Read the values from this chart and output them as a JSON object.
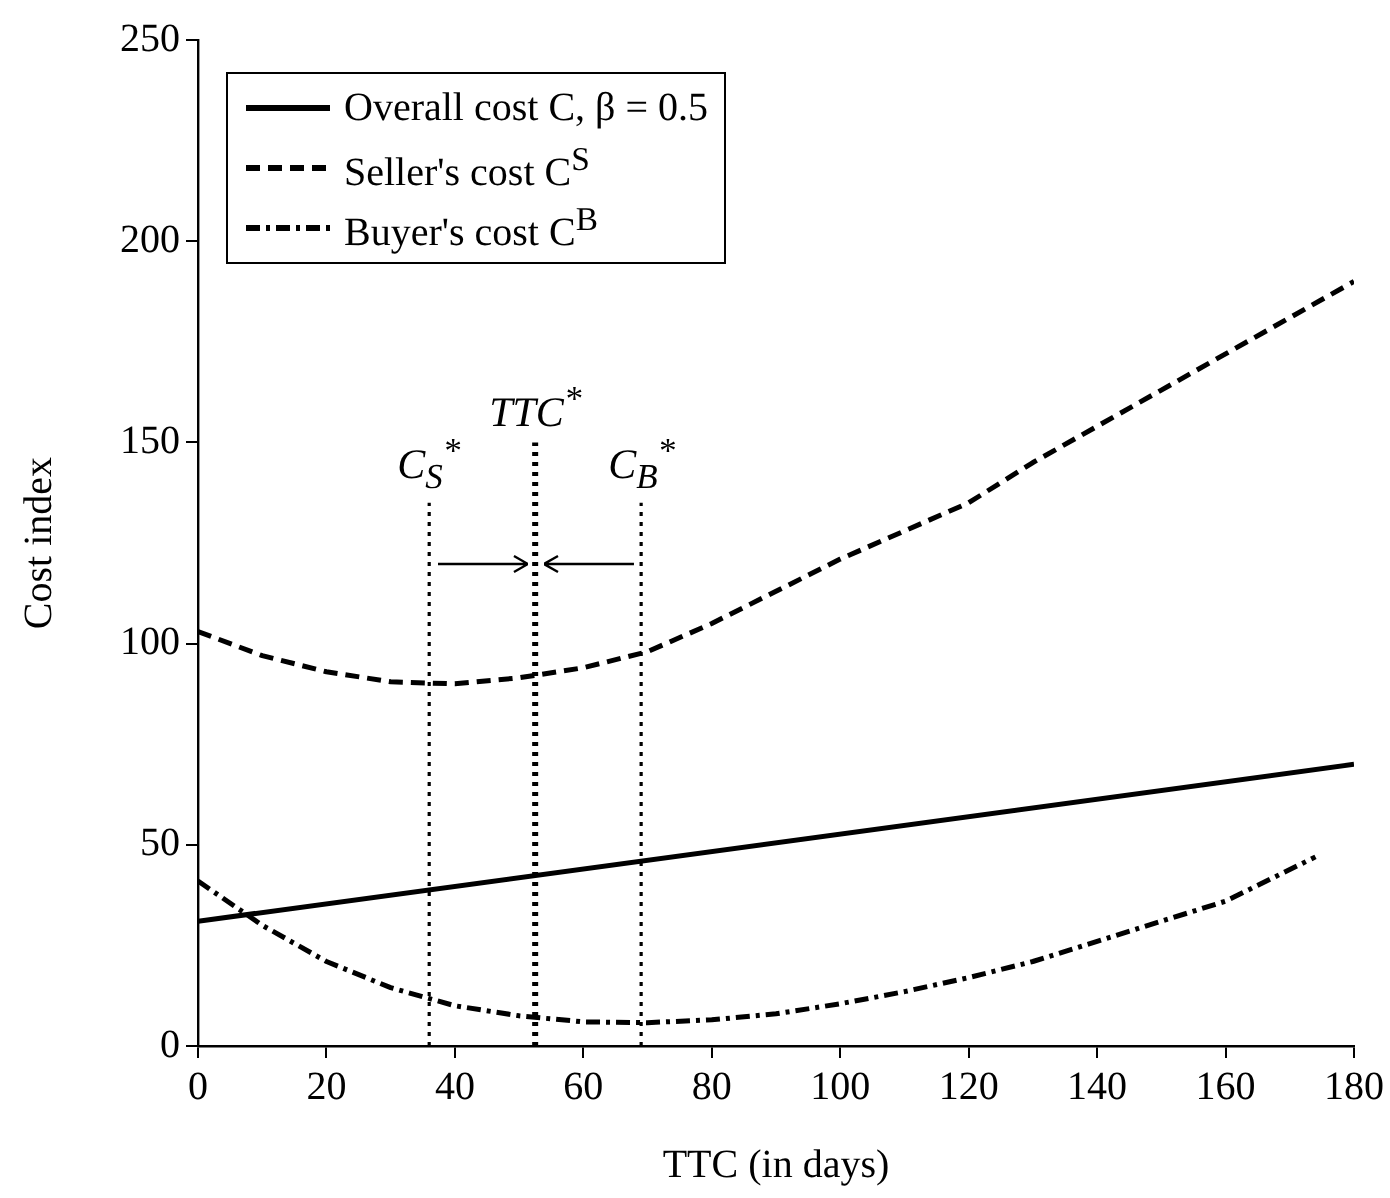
{
  "chart_data": {
    "type": "line",
    "xlabel": "TTC (in days)",
    "ylabel": "Cost index",
    "xlim": [
      0,
      180
    ],
    "xticks": [
      0,
      20,
      40,
      60,
      80,
      100,
      120,
      140,
      160,
      180
    ],
    "ylim": [
      0,
      250
    ],
    "yticks": [
      0,
      50,
      100,
      150,
      200,
      250
    ],
    "grid": false,
    "legend": "top left",
    "marker": "none",
    "series": [
      {
        "name": "Overall cost C, β = 0.5",
        "color": "#000000",
        "line_style": "solid",
        "x": [
          0,
          180
        ],
        "values": [
          31,
          70
        ]
      },
      {
        "name": "Seller's cost C$^{S}$",
        "color": "#000000",
        "line_style": "dashed",
        "x": [
          0,
          10,
          20,
          30,
          40,
          50,
          60,
          70,
          80,
          90,
          100,
          110,
          120,
          130,
          140,
          150,
          160,
          170,
          180
        ],
        "values": [
          103,
          97,
          93,
          90.5,
          90,
          91.5,
          94,
          98,
          105,
          113,
          121,
          128,
          135,
          145,
          154,
          163,
          172,
          181,
          190
        ]
      },
      {
        "name": "Buyer's cost C$^{B}$",
        "color": "#000000",
        "line_style": "dashdot",
        "x": [
          0,
          10,
          20,
          30,
          40,
          50,
          60,
          70,
          80,
          90,
          100,
          110,
          120,
          130,
          140,
          150,
          160,
          174
        ],
        "values": [
          41,
          30,
          21,
          14.5,
          10,
          7.5,
          6,
          5.8,
          6.5,
          8,
          10.5,
          13.5,
          17,
          21,
          26,
          31,
          36,
          47
        ]
      }
    ],
    "ref_lines": [
      {
        "axis": "x",
        "value": 36,
        "label": "C$_{S}$$^{*}$",
        "line_style": "dotted",
        "color": "#000000"
      },
      {
        "axis": "x",
        "value": 52.5,
        "label": "TTC$^{*}$",
        "line_style": "dotted",
        "color": "#000000"
      },
      {
        "axis": "x",
        "value": 69,
        "label": "C$_{B}$$^{*}$",
        "line_style": "dotted",
        "color": "#000000"
      }
    ]
  }
}
